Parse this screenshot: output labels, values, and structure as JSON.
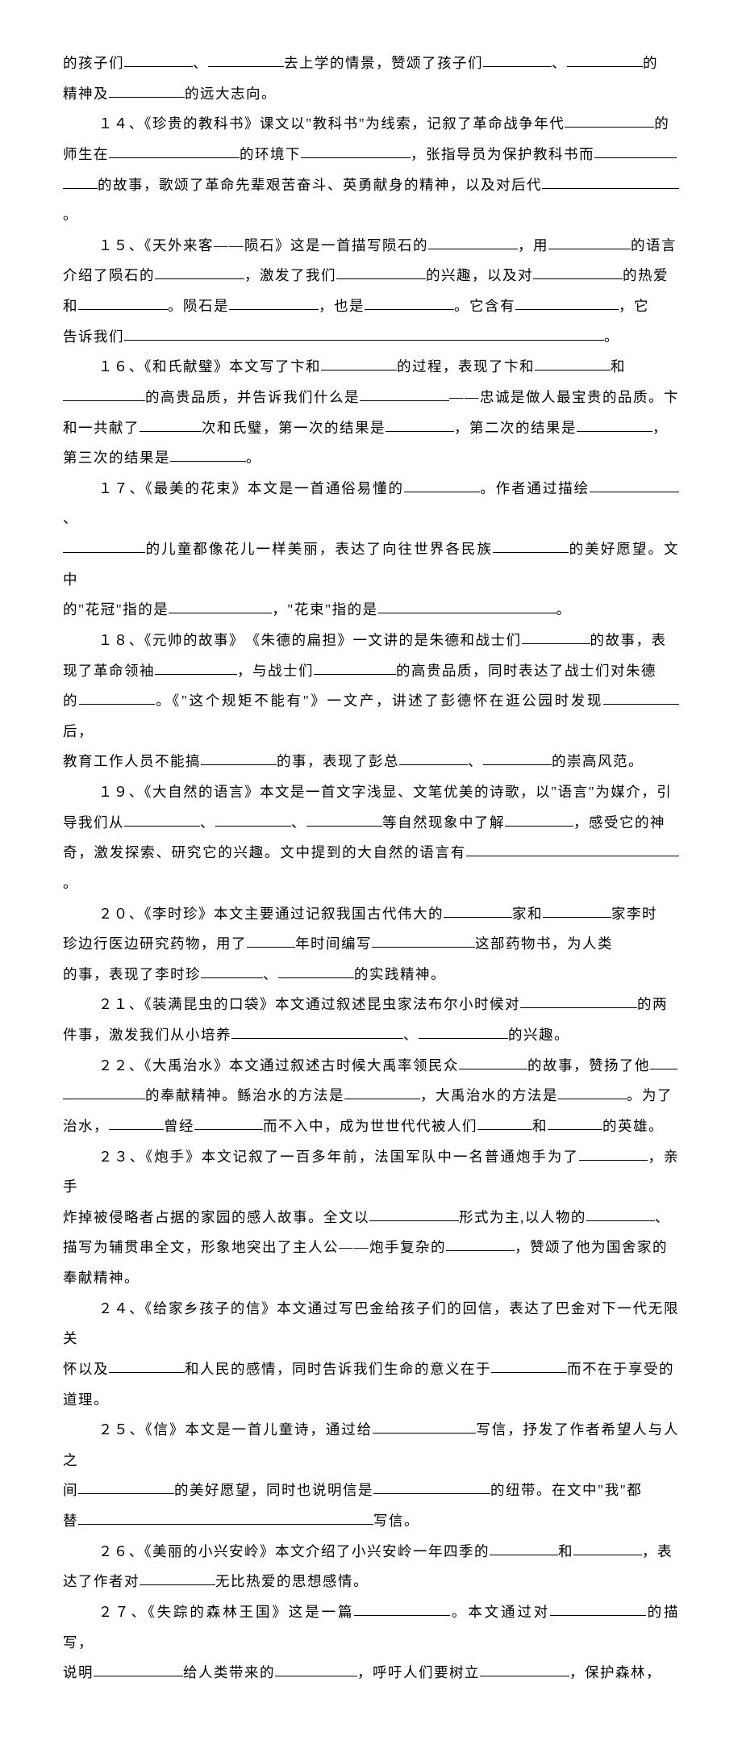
{
  "items": [
    {
      "q": "的孩子们__________、___________去上学的情景，赞颂了孩子们__________、___________的",
      "ind": false
    },
    {
      "q": "精神及___________的远大志向。",
      "ind": false
    },
    {
      "q": "１４、《珍贵的教科书》课文以\"教科书\"为线索，记叙了革命战争年代_____________的",
      "ind": true
    },
    {
      "q": "师生在___________________的环境下________________，张指导员为保护教科书而____________",
      "ind": false
    },
    {
      "q": "_____的故事，歌颂了革命先辈艰苦奋斗、英勇献身的精神，以及对后代____________________。",
      "ind": false
    },
    {
      "q": "１５、《天外来客——陨石》这是一首描写陨石的_____________，用____________的语言",
      "ind": true
    },
    {
      "q": "介绍了陨石的_____________，激发了我们_____________的兴趣，以及对_____________的热爱",
      "ind": false
    },
    {
      "q": "和_____________。陨石是_____________，也是_____________。它含有_______________，它",
      "ind": false
    },
    {
      "q": "告诉我们______________________________________________________________________。",
      "ind": false
    },
    {
      "q": "１６、《和氏献璧》本文写了卞和___________的过程，表现了卞和___________和",
      "ind": true
    },
    {
      "q": "____________的高贵品质，并告诉我们什么是_____________——忠诚是做人最宝贵的品质。卞",
      "ind": false
    },
    {
      "q": "和一共献了_________次和氏璧，第一次的结果是__________，第二次的结果是___________，",
      "ind": false
    },
    {
      "q": "第三次的结果是___________。",
      "ind": false
    },
    {
      "q": "１７、《最美的花束》本文是一首通俗易懂的___________。作者通过描绘_____________、",
      "ind": true
    },
    {
      "q": "____________的儿童都像花儿一样美丽，表达了向往世界各民族___________的美好愿望。文中",
      "ind": false
    },
    {
      "q": "的\"花冠\"指的是_______________，\"花束\"指的是__________________________。",
      "ind": false
    },
    {
      "q": "１８、《元帅的故事》　《朱德的扁担》一文讲的是朱德和战士们__________的故事，表",
      "ind": true
    },
    {
      "q": "现了革命领袖____________，与战士们____________的高贵品质，同时表达了战士们对朱德",
      "ind": false
    },
    {
      "q": "的___________。《\"这个规矩不能有\"》一文产，讲述了彭德怀在逛公园时发现___________后，",
      "ind": false
    },
    {
      "q": "教育工作人员不能搞___________的事，表现了彭总__________、__________的崇高风范。",
      "ind": false
    },
    {
      "q": "１９、《大自然的语言》本文是一首文字浅显、文笔优美的诗歌，以\"语言\"为媒介，引",
      "ind": true
    },
    {
      "q": "导我们从___________、___________、___________等自然现象中了解__________，感受它的神",
      "ind": false
    },
    {
      "q": "奇，激发探索、研究它的兴趣。文中提到的大自然的语言有_______________________________。",
      "ind": false
    },
    {
      "q": "２０、《李时珍》本文主要通过记叙我国古代伟大的__________家和__________家李时",
      "ind": true
    },
    {
      "q": "珍边行医边研究药物，用了_______年时间编写_______________这部药物书，为人类",
      "ind": false
    },
    {
      "q": "的事，表现了李时珍_________、___________的实践精神。",
      "ind": false
    },
    {
      "q": "２１、《装满昆虫的口袋》本文通过叙述昆虫家法布尔小时候对_________________的两",
      "ind": true
    },
    {
      "q": "件事，激发我们从小培养_________________________、_____________的兴趣。",
      "ind": false
    },
    {
      "q": "２２、《大禹治水》本文通过叙述古时候大禹率领民众__________的故事，赞扬了他____",
      "ind": true
    },
    {
      "q": "____________的奉献精神。鲧治水的方法是___________，大禹治水的方法是__________。为了",
      "ind": false
    },
    {
      "q": "治水，________曾经__________而不入中，成为世世代代被人们________和________的英雄。",
      "ind": false
    },
    {
      "q": "２３、《炮手》本文记叙了一百多年前，法国军队中一名普通炮手为了__________，亲手",
      "ind": true
    },
    {
      "q": "炸掉被侵略者占据的家园的感人故事。全文以_____________形式为主,以人物的__________、",
      "ind": false
    },
    {
      "q": "描写为辅贯串全文，形象地突出了主人公——炮手复杂的__________，赞颂了他为国舍家的",
      "ind": false
    },
    {
      "q": "奉献精神。",
      "ind": false
    },
    {
      "q": "２４、《给家乡孩子的信》本文通过写巴金给孩子们的回信，表达了巴金对下一代无限关",
      "ind": true
    },
    {
      "q": "怀以及___________和人民的感情，同时告诉我们生命的意义在于___________而不在于享受的",
      "ind": false
    },
    {
      "q": "道理。",
      "ind": false
    },
    {
      "q": "２５、《信》本文是一首儿童诗，通过给_______________写信，抒发了作者希望人与人之",
      "ind": true
    },
    {
      "q": "间______________的美好愿望，同时也说明信是_________________的纽带。在文中\"我\"都",
      "ind": false
    },
    {
      "q": "替___________________________________________写信。",
      "ind": false
    },
    {
      "q": "２６、《美丽的小兴安岭》本文介绍了小兴安岭一年四季的__________和__________，表",
      "ind": true
    },
    {
      "q": "达了作者对___________无比热爱的思想感情。",
      "ind": false
    },
    {
      "q": "２７、《失踪的森林王国》这是一篇______________。本文通过对______________的描写，",
      "ind": true
    },
    {
      "q": "说明_____________给人类带来的____________，呼吁人们要树立_____________，保护森林，",
      "ind": false
    }
  ],
  "blankWidths": {
    "short": 55,
    "med": 75,
    "long": 95,
    "xlong": 130,
    "xxlong": 180,
    "full": 500
  }
}
